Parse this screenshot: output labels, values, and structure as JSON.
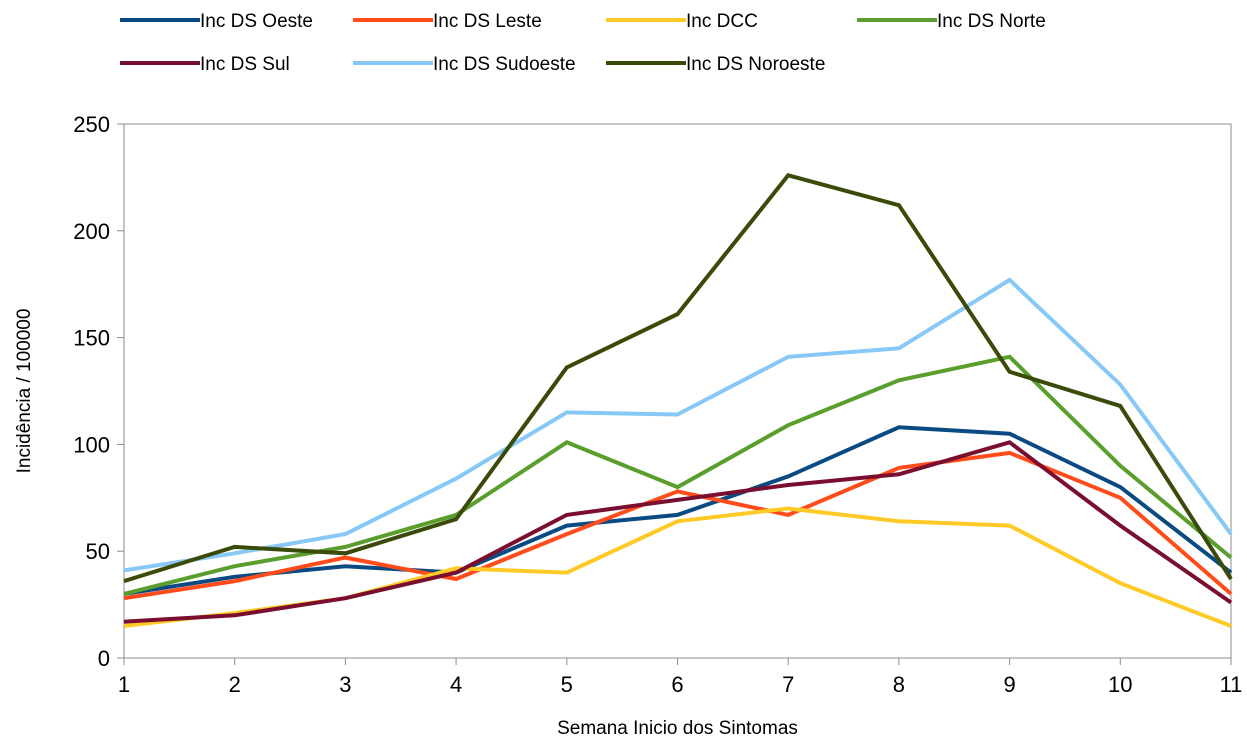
{
  "chart_data": {
    "type": "line",
    "title": "",
    "xlabel": "Semana Inicio dos Sintomas",
    "ylabel": "Incidência / 100000",
    "x": [
      "1",
      "2",
      "3",
      "4",
      "5",
      "6",
      "7",
      "8",
      "9",
      "10",
      "11"
    ],
    "ylim": [
      0,
      250
    ],
    "yticks": [
      "0",
      "50",
      "100",
      "150",
      "200",
      "250"
    ],
    "grid": false,
    "legend_position": "top",
    "series": [
      {
        "name": "Inc DS Oeste",
        "color": "#0a4a82",
        "values": [
          30,
          38,
          43,
          40,
          62,
          67,
          85,
          108,
          105,
          80,
          40
        ]
      },
      {
        "name": "Inc DS Leste",
        "color": "#ff4c1a",
        "values": [
          28,
          36,
          47,
          37,
          58,
          78,
          67,
          89,
          96,
          75,
          30
        ]
      },
      {
        "name": "Inc DCC",
        "color": "#ffc926",
        "values": [
          15,
          21,
          28,
          42,
          40,
          64,
          70,
          64,
          62,
          35,
          15
        ]
      },
      {
        "name": "Inc DS Norte",
        "color": "#5a9e2e",
        "values": [
          30,
          43,
          52,
          67,
          101,
          80,
          109,
          130,
          141,
          90,
          47
        ]
      },
      {
        "name": "Inc DS Sul",
        "color": "#7a0e2e",
        "values": [
          17,
          20,
          28,
          40,
          67,
          74,
          81,
          86,
          101,
          62,
          26
        ]
      },
      {
        "name": "Inc DS Sudoeste",
        "color": "#88c8f7",
        "values": [
          41,
          49,
          58,
          84,
          115,
          114,
          141,
          145,
          177,
          128,
          58
        ]
      },
      {
        "name": "Inc DS Noroeste",
        "color": "#3a4a08",
        "values": [
          36,
          52,
          49,
          65,
          136,
          161,
          226,
          212,
          134,
          118,
          37
        ]
      }
    ]
  }
}
